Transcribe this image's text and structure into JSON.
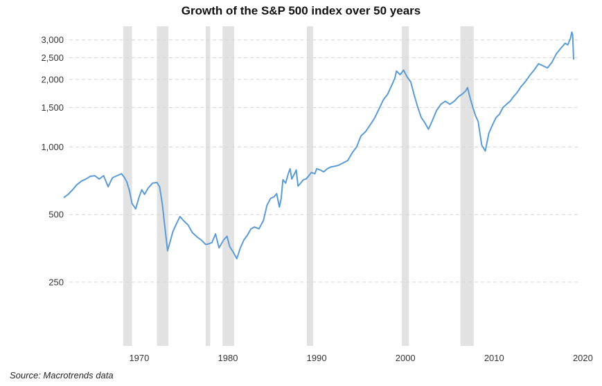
{
  "chart_data": {
    "type": "line",
    "title": "Growth of the S&P 500 index over 50 years",
    "source": "Source: Macrotrends data",
    "xlabel": "",
    "ylabel": "",
    "y_scale": "log",
    "ylim": [
      130,
      3450
    ],
    "xlim": [
      1961.5,
      2019.5
    ],
    "grid": {
      "horizontal": true,
      "style": "dashed"
    },
    "y_ticks": [
      {
        "value": 250,
        "label": "250"
      },
      {
        "value": 500,
        "label": "500"
      },
      {
        "value": 1000,
        "label": "1,000"
      },
      {
        "value": 1500,
        "label": "1,500"
      },
      {
        "value": 2000,
        "label": "2,000"
      },
      {
        "value": 2500,
        "label": "2,500"
      },
      {
        "value": 3000,
        "label": "3,000"
      }
    ],
    "x_ticks": [
      {
        "value": 1970,
        "label": "1970"
      },
      {
        "value": 1980,
        "label": "1980"
      },
      {
        "value": 1990,
        "label": "1990"
      },
      {
        "value": 2000,
        "label": "2000"
      },
      {
        "value": 2010,
        "label": "2010"
      },
      {
        "value": 2020,
        "label": "2020"
      }
    ],
    "shaded_periods": [
      [
        1968.2,
        1969.2
      ],
      [
        1972.0,
        1973.3
      ],
      [
        1977.5,
        1978.0
      ],
      [
        1979.4,
        1980.7
      ],
      [
        1988.9,
        1989.6
      ],
      [
        1999.6,
        2000.4
      ],
      [
        2006.2,
        2007.7
      ]
    ],
    "colors": {
      "line": "#5b9bd5",
      "shading": "#e2e2e2",
      "grid": "#d6d6d6"
    },
    "series": [
      {
        "x": [
          1961.5,
          1962.0,
          1962.5,
          1963.0,
          1963.5,
          1964.0,
          1964.5,
          1965.0,
          1965.5,
          1966.0,
          1966.5,
          1966.8,
          1967.0,
          1967.5,
          1968.0,
          1968.3,
          1968.6,
          1968.9,
          1969.2,
          1969.6,
          1970.0,
          1970.3,
          1970.6,
          1971.0,
          1971.5,
          1972.0,
          1972.3,
          1972.6,
          1972.9,
          1973.2,
          1973.5,
          1973.8,
          1974.2,
          1974.6,
          1975.0,
          1975.5,
          1976.0,
          1976.5,
          1977.0,
          1977.5,
          1977.8,
          1978.2,
          1978.6,
          1979.0,
          1979.5,
          1979.9,
          1980.2,
          1980.6,
          1981.0,
          1981.4,
          1981.8,
          1982.2,
          1982.6,
          1983.0,
          1983.5,
          1984.0,
          1984.4,
          1984.8,
          1985.2,
          1985.5,
          1985.8,
          1986.0,
          1986.2,
          1986.5,
          1986.8,
          1987.0,
          1987.2,
          1987.5,
          1987.7,
          1987.9,
          1988.2,
          1988.5,
          1988.8,
          1989.0,
          1989.4,
          1989.8,
          1990.0,
          1990.4,
          1990.8,
          1991.2,
          1991.6,
          1992.0,
          1992.5,
          1993.0,
          1993.5,
          1994.0,
          1994.5,
          1995.0,
          1995.5,
          1996.0,
          1996.5,
          1997.0,
          1997.5,
          1998.0,
          1998.5,
          1998.8,
          1999.0,
          1999.4,
          1999.8,
          2000.2,
          2000.6,
          2001.0,
          2001.4,
          2001.8,
          2002.2,
          2002.6,
          2003.0,
          2003.5,
          2004.0,
          2004.5,
          2005.0,
          2005.5,
          2006.0,
          2006.4,
          2006.8,
          2007.0,
          2007.3,
          2007.6,
          2007.9,
          2008.2,
          2008.6,
          2009.0,
          2009.4,
          2009.8,
          2010.2,
          2010.6,
          2011.0,
          2011.4,
          2011.8,
          2012.2,
          2012.6,
          2013.0,
          2013.5,
          2014.0,
          2014.5,
          2015.0,
          2015.5,
          2016.0,
          2016.5,
          2017.0,
          2017.5,
          2018.0,
          2018.3,
          2018.6,
          2018.75,
          2018.85,
          2018.95
        ],
        "values": [
          595,
          615,
          645,
          680,
          705,
          720,
          740,
          745,
          720,
          745,
          665,
          705,
          730,
          745,
          760,
          735,
          700,
          640,
          560,
          530,
          600,
          645,
          615,
          655,
          690,
          695,
          665,
          560,
          440,
          345,
          380,
          420,
          455,
          490,
          470,
          450,
          415,
          398,
          385,
          368,
          370,
          375,
          410,
          355,
          385,
          400,
          360,
          340,
          318,
          355,
          385,
          405,
          432,
          440,
          432,
          470,
          550,
          590,
          600,
          620,
          540,
          590,
          715,
          690,
          760,
          800,
          720,
          760,
          790,
          670,
          690,
          715,
          720,
          735,
          770,
          760,
          800,
          790,
          775,
          800,
          815,
          820,
          830,
          850,
          870,
          940,
          1000,
          1120,
          1170,
          1250,
          1340,
          1470,
          1620,
          1720,
          1900,
          2020,
          2180,
          2100,
          2200,
          2050,
          1950,
          1700,
          1500,
          1350,
          1280,
          1200,
          1300,
          1450,
          1550,
          1600,
          1550,
          1600,
          1680,
          1720,
          1780,
          1840,
          1650,
          1500,
          1380,
          1300,
          1020,
          960,
          1150,
          1250,
          1350,
          1400,
          1500,
          1550,
          1600,
          1680,
          1750,
          1850,
          1950,
          2080,
          2200,
          2350,
          2300,
          2250,
          2380,
          2600,
          2750,
          2900,
          2850,
          3050,
          3250,
          3150,
          2450
        ]
      }
    ]
  }
}
